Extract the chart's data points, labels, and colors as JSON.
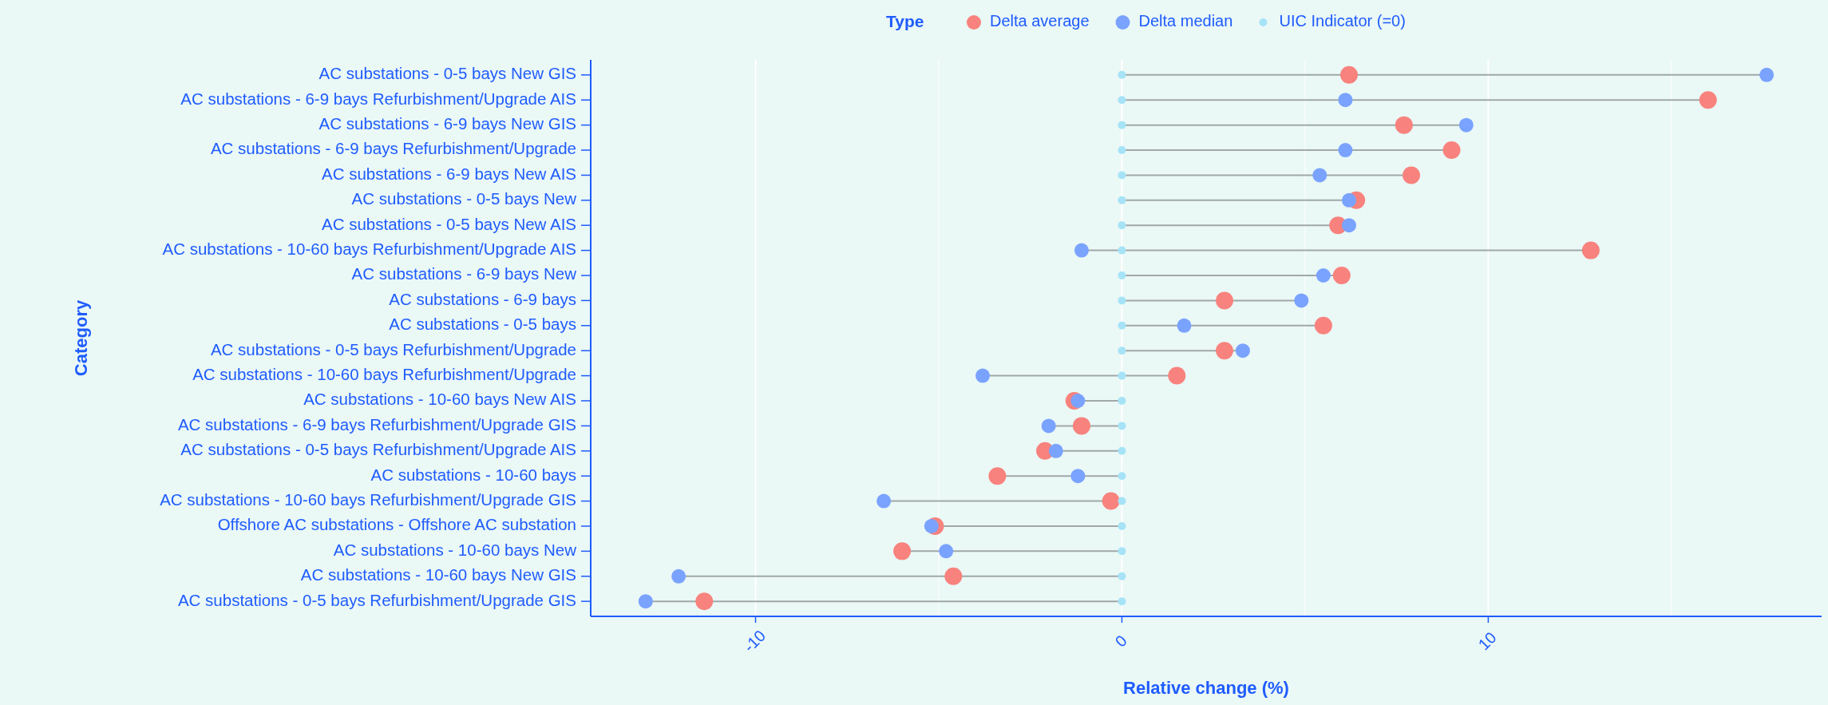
{
  "chart_data": {
    "type": "lollipop",
    "orientation": "horizontal",
    "xlabel": "Relative change (%)",
    "ylabel": "Category",
    "legend_title": "Type",
    "legend": "top",
    "grid": "x",
    "categories": [
      "AC substations - 0-5 bays New GIS",
      "AC substations - 6-9 bays Refurbishment/Upgrade AIS",
      "AC substations - 6-9 bays New GIS",
      "AC substations - 6-9 bays Refurbishment/Upgrade",
      "AC substations - 6-9 bays New AIS",
      "AC substations - 0-5 bays New",
      "AC substations - 0-5 bays New AIS",
      "AC substations - 10-60 bays Refurbishment/Upgrade AIS",
      "AC substations - 6-9 bays New",
      "AC substations - 6-9 bays",
      "AC substations - 0-5 bays",
      "AC substations - 0-5 bays Refurbishment/Upgrade",
      "AC substations - 10-60 bays Refurbishment/Upgrade",
      "AC substations - 10-60 bays New AIS",
      "AC substations - 6-9 bays Refurbishment/Upgrade GIS",
      "AC substations - 0-5 bays Refurbishment/Upgrade AIS",
      "AC substations - 10-60 bays",
      "AC substations - 10-60 bays Refurbishment/Upgrade GIS",
      "Offshore AC substations - Offshore AC substation",
      "AC substations - 10-60 bays New",
      "AC substations - 10-60 bays New GIS",
      "AC substations - 0-5 bays Refurbishment/Upgrade GIS"
    ],
    "xlim": [
      -14.5,
      19.1
    ],
    "xticks": [
      -10,
      {
        "value": -5,
        "label": null
      },
      0,
      {
        "value": 5,
        "label": null
      },
      10,
      {
        "value": 15,
        "label": null
      }
    ],
    "series": [
      {
        "name": "Delta average",
        "type": "scatter",
        "color": "#f8827d",
        "values": [
          6.2,
          16.0,
          7.7,
          9.0,
          7.9,
          6.4,
          5.9,
          12.8,
          6.0,
          2.8,
          5.5,
          2.8,
          1.5,
          -1.3,
          -1.1,
          -2.1,
          -3.4,
          -0.3,
          -5.1,
          -6.0,
          -4.6,
          -11.4
        ]
      },
      {
        "name": "Delta median",
        "type": "scatter",
        "color": "#7aa3ff",
        "values": [
          17.6,
          6.1,
          9.4,
          6.1,
          5.4,
          6.2,
          6.2,
          -1.1,
          5.5,
          4.9,
          1.7,
          3.3,
          -3.8,
          -1.2,
          -2.0,
          -1.8,
          -1.2,
          -6.5,
          -5.2,
          -4.8,
          -12.1,
          -13.0
        ]
      },
      {
        "name": "UIC Indicator (=0)",
        "type": "scatter",
        "color": "#a6e3f7",
        "values": [
          0,
          0,
          0,
          0,
          0,
          0,
          0,
          0,
          0,
          0,
          0,
          0,
          0,
          0,
          0,
          0,
          0,
          0,
          0,
          0,
          0,
          0
        ]
      }
    ]
  }
}
